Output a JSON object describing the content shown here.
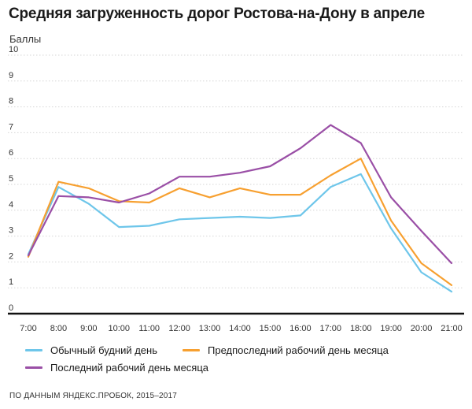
{
  "chart_data": {
    "type": "line",
    "title": "Средняя загруженность дорог Ростова-на-Дону в апреле",
    "ylabel": "Баллы",
    "xlabel": "",
    "ylim": [
      0,
      10
    ],
    "yticks": [
      "0",
      "1",
      "2",
      "3",
      "4",
      "5",
      "6",
      "7",
      "8",
      "9",
      "10"
    ],
    "categories": [
      "7:00",
      "8:00",
      "9:00",
      "10:00",
      "11:00",
      "12:00",
      "13:00",
      "14:00",
      "15:00",
      "16:00",
      "17:00",
      "18:00",
      "19:00",
      "20:00",
      "21:00"
    ],
    "series": [
      {
        "name": "Обычный будний день",
        "color": "#6ec6ea",
        "values": [
          2.3,
          4.9,
          4.25,
          3.35,
          3.4,
          3.65,
          3.7,
          3.75,
          3.7,
          3.8,
          4.9,
          5.4,
          3.3,
          1.6,
          0.85
        ]
      },
      {
        "name": "Предпоследний рабочий день месяца",
        "color": "#f7a030",
        "values": [
          2.2,
          5.1,
          4.85,
          4.35,
          4.3,
          4.85,
          4.5,
          4.85,
          4.6,
          4.6,
          5.35,
          6.0,
          3.6,
          1.95,
          1.1
        ]
      },
      {
        "name": "Последний рабочий день месяца",
        "color": "#9a4fa6",
        "values": [
          2.25,
          4.55,
          4.5,
          4.3,
          4.65,
          5.3,
          5.3,
          5.45,
          5.7,
          6.4,
          7.3,
          6.6,
          4.5,
          3.2,
          1.95
        ]
      }
    ],
    "grid": true,
    "legend_position": "bottom"
  },
  "source": "ПО ДАННЫМ ЯНДЕКС.ПРОБОК, 2015–2017"
}
